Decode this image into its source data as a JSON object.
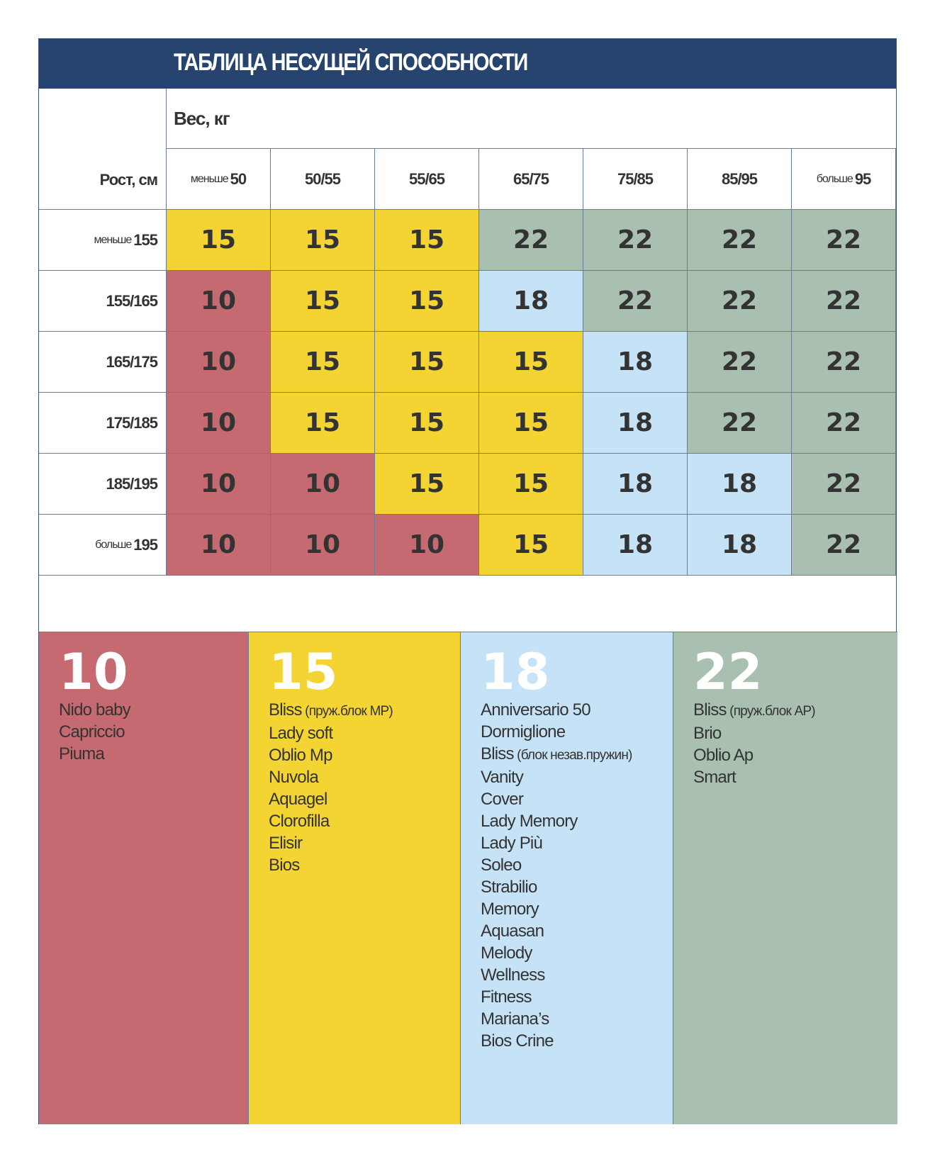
{
  "title": "ТАБЛИЦА НЕСУЩЕЙ СПОСОБНОСТИ",
  "weight_label": "Вес, кг",
  "height_label": "Рост, см",
  "colors": {
    "header": "#27446e",
    "10": "#c56a70",
    "15": "#f4d432",
    "18": "#c6e2f7",
    "22": "#a9bfaf"
  },
  "columns": [
    {
      "prefix": "меньше",
      "value": "50"
    },
    {
      "prefix": "",
      "value": "50/55"
    },
    {
      "prefix": "",
      "value": "55/65"
    },
    {
      "prefix": "",
      "value": "65/75"
    },
    {
      "prefix": "",
      "value": "75/85"
    },
    {
      "prefix": "",
      "value": "85/95"
    },
    {
      "prefix": "больше",
      "value": "95"
    }
  ],
  "rows": [
    {
      "prefix": "меньше",
      "value": "155",
      "cells": [
        "15",
        "15",
        "15",
        "22",
        "22",
        "22",
        "22"
      ]
    },
    {
      "prefix": "",
      "value": "155/165",
      "cells": [
        "10",
        "15",
        "15",
        "18",
        "22",
        "22",
        "22"
      ]
    },
    {
      "prefix": "",
      "value": "165/175",
      "cells": [
        "10",
        "15",
        "15",
        "15",
        "18",
        "22",
        "22"
      ]
    },
    {
      "prefix": "",
      "value": "175/185",
      "cells": [
        "10",
        "15",
        "15",
        "15",
        "18",
        "22",
        "22"
      ]
    },
    {
      "prefix": "",
      "value": "185/195",
      "cells": [
        "10",
        "10",
        "15",
        "15",
        "18",
        "18",
        "22"
      ]
    },
    {
      "prefix": "больше",
      "value": "195",
      "cells": [
        "10",
        "10",
        "10",
        "15",
        "18",
        "18",
        "22"
      ]
    }
  ],
  "legend": [
    {
      "value": "10",
      "items": [
        {
          "name": "Nido baby",
          "note": ""
        },
        {
          "name": "Capriccio",
          "note": ""
        },
        {
          "name": "Piuma",
          "note": ""
        }
      ]
    },
    {
      "value": "15",
      "items": [
        {
          "name": "Bliss",
          "note": "(пруж.блок MP)"
        },
        {
          "name": "Lady soft",
          "note": ""
        },
        {
          "name": "Oblio Mp",
          "note": ""
        },
        {
          "name": "Nuvola",
          "note": ""
        },
        {
          "name": "Aquagel",
          "note": ""
        },
        {
          "name": "Clorofilla",
          "note": ""
        },
        {
          "name": "Elisir",
          "note": ""
        },
        {
          "name": "Bios",
          "note": ""
        }
      ]
    },
    {
      "value": "18",
      "items": [
        {
          "name": "Anniversario 50",
          "note": ""
        },
        {
          "name": "Dormiglione",
          "note": ""
        },
        {
          "name": "Bliss",
          "note": "(блок незав.пружин)"
        },
        {
          "name": "Vanity",
          "note": ""
        },
        {
          "name": "Cover",
          "note": ""
        },
        {
          "name": "Lady Memory",
          "note": ""
        },
        {
          "name": "Lady Più",
          "note": ""
        },
        {
          "name": "Soleo",
          "note": ""
        },
        {
          "name": "Strabilio",
          "note": ""
        },
        {
          "name": "Memory",
          "note": ""
        },
        {
          "name": "Aquasan",
          "note": ""
        },
        {
          "name": "Melody",
          "note": ""
        },
        {
          "name": "Wellness",
          "note": ""
        },
        {
          "name": "Fitness",
          "note": ""
        },
        {
          "name": "Mariana’s",
          "note": ""
        },
        {
          "name": "Bios Crine",
          "note": ""
        }
      ]
    },
    {
      "value": "22",
      "items": [
        {
          "name": "Bliss",
          "note": "(пруж.блок AP)"
        },
        {
          "name": "Brio",
          "note": ""
        },
        {
          "name": "Oblio Ap",
          "note": ""
        },
        {
          "name": "Smart",
          "note": ""
        }
      ]
    }
  ]
}
